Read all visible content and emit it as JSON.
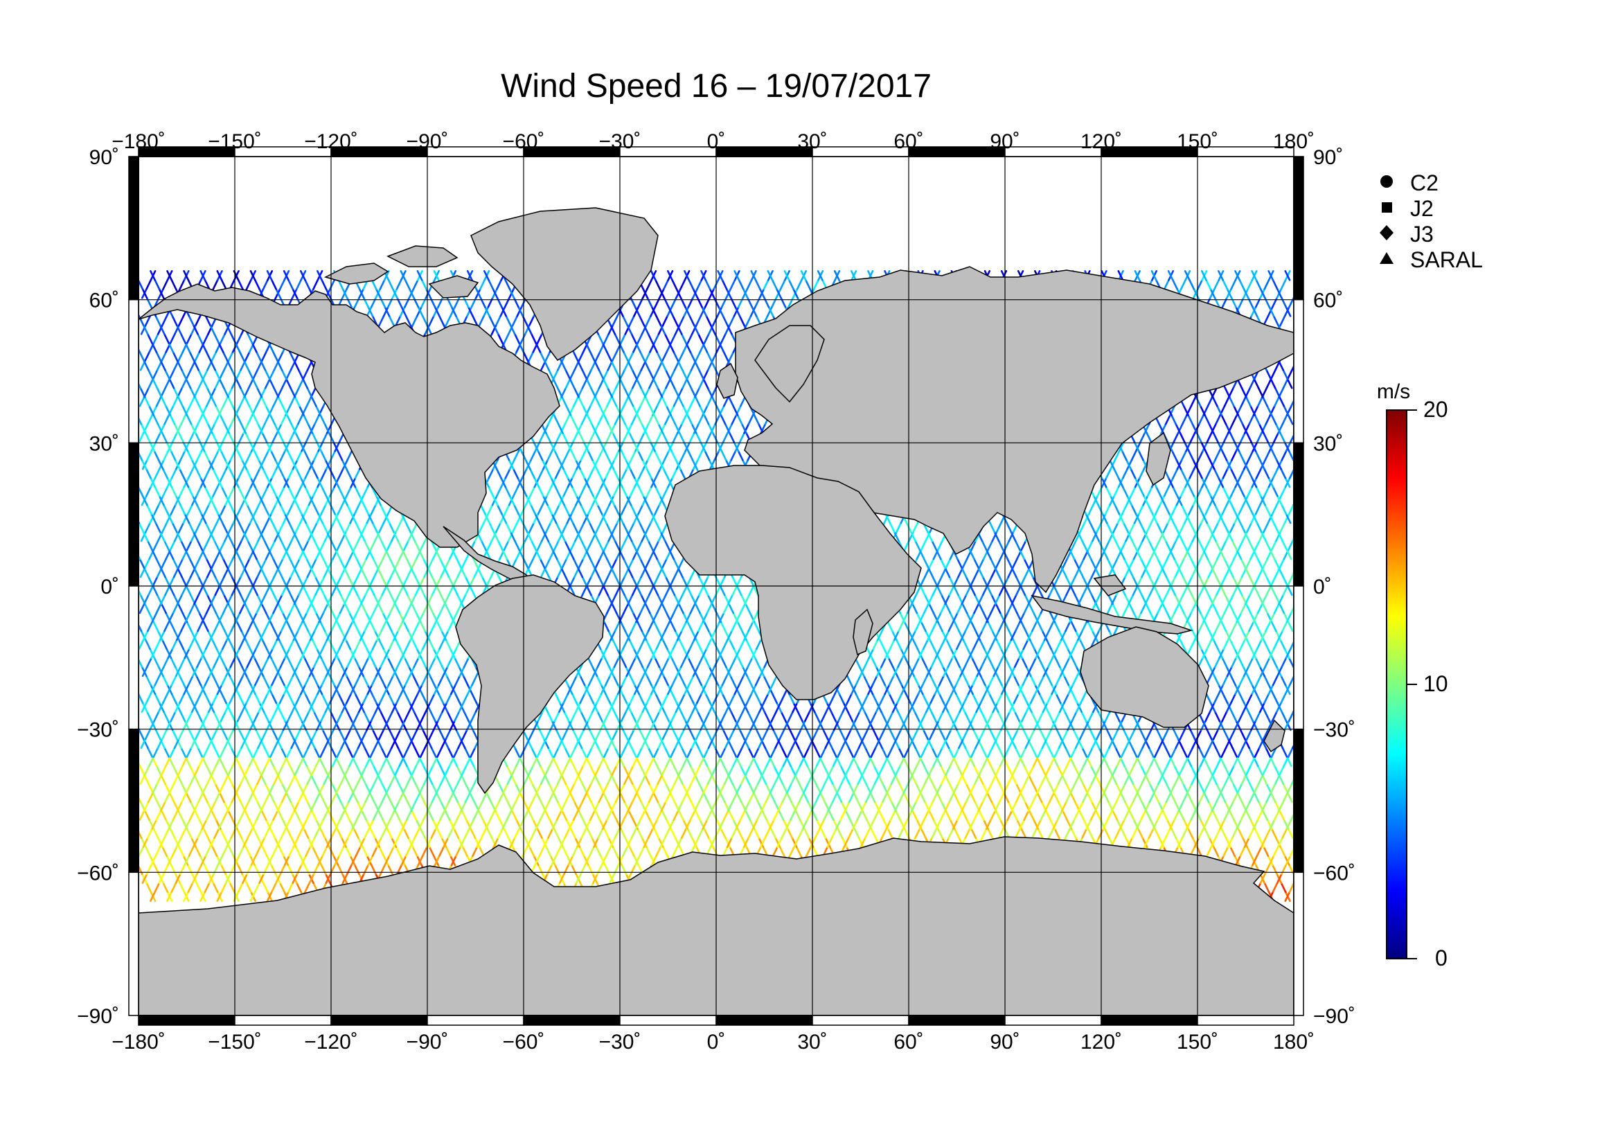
{
  "title": "Wind Speed 16 – 19/07/2017",
  "map": {
    "projection": "equirectangular",
    "lon_range": [
      -180,
      180
    ],
    "lat_range": [
      -90,
      90
    ],
    "grid_step": 30,
    "land_color": "#bebebe",
    "ocean_color": "#ffffff",
    "lon_ticks": [
      "−180˚",
      "−150˚",
      "−120˚",
      "−90˚",
      "−60˚",
      "−30˚",
      "0˚",
      "30˚",
      "60˚",
      "90˚",
      "120˚",
      "150˚",
      "180˚"
    ],
    "lat_ticks": [
      "90˚",
      "60˚",
      "30˚",
      "0˚",
      "−30˚",
      "−60˚",
      "−90˚"
    ]
  },
  "legend": {
    "items": [
      {
        "label": "C2",
        "marker": "circle"
      },
      {
        "label": "J2",
        "marker": "square"
      },
      {
        "label": "J3",
        "marker": "diamond"
      },
      {
        "label": "SARAL",
        "marker": "triangle"
      }
    ]
  },
  "colorbar": {
    "unit": "m/s",
    "min": 0,
    "max": 20,
    "tick_labels": [
      "20",
      "10",
      "0"
    ],
    "colors": [
      "#00007f",
      "#0000ff",
      "#007fff",
      "#00ffff",
      "#7fff7f",
      "#ffff00",
      "#ff7f00",
      "#ff0000",
      "#7f0000"
    ]
  }
}
